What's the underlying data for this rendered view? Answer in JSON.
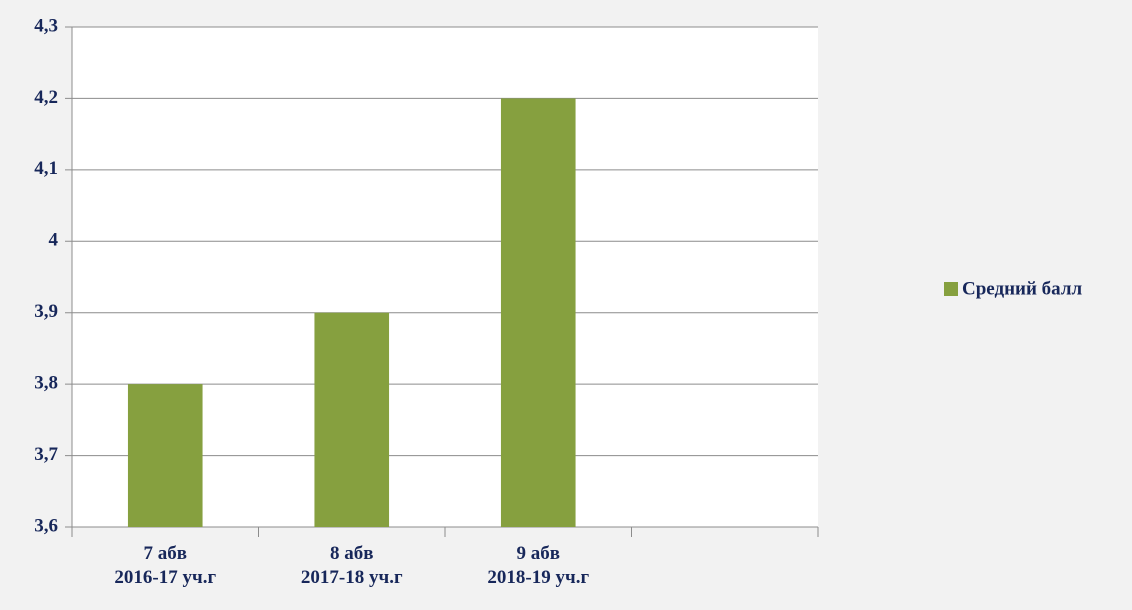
{
  "chart_data": {
    "type": "bar",
    "categories": [
      "7  абв\n2016-17 уч.г",
      "8 абв\n2017-18 уч.г",
      "9 абв\n2018-19 уч.г",
      null
    ],
    "series": [
      {
        "name": "Средний балл",
        "color": "#86a03f",
        "values": [
          3.8,
          3.9,
          4.2,
          null
        ]
      }
    ],
    "ylim": [
      3.6,
      4.3
    ],
    "yticks": [
      {
        "value": 3.6,
        "label": "3,6"
      },
      {
        "value": 3.7,
        "label": "3,7"
      },
      {
        "value": 3.8,
        "label": "3,8"
      },
      {
        "value": 3.9,
        "label": "3,9"
      },
      4,
      {
        "value": 4.1,
        "label": "4,1"
      },
      {
        "value": 4.2,
        "label": "4,2"
      },
      {
        "value": 4.3,
        "label": "4,3"
      }
    ],
    "grid": true,
    "legend": "right"
  }
}
